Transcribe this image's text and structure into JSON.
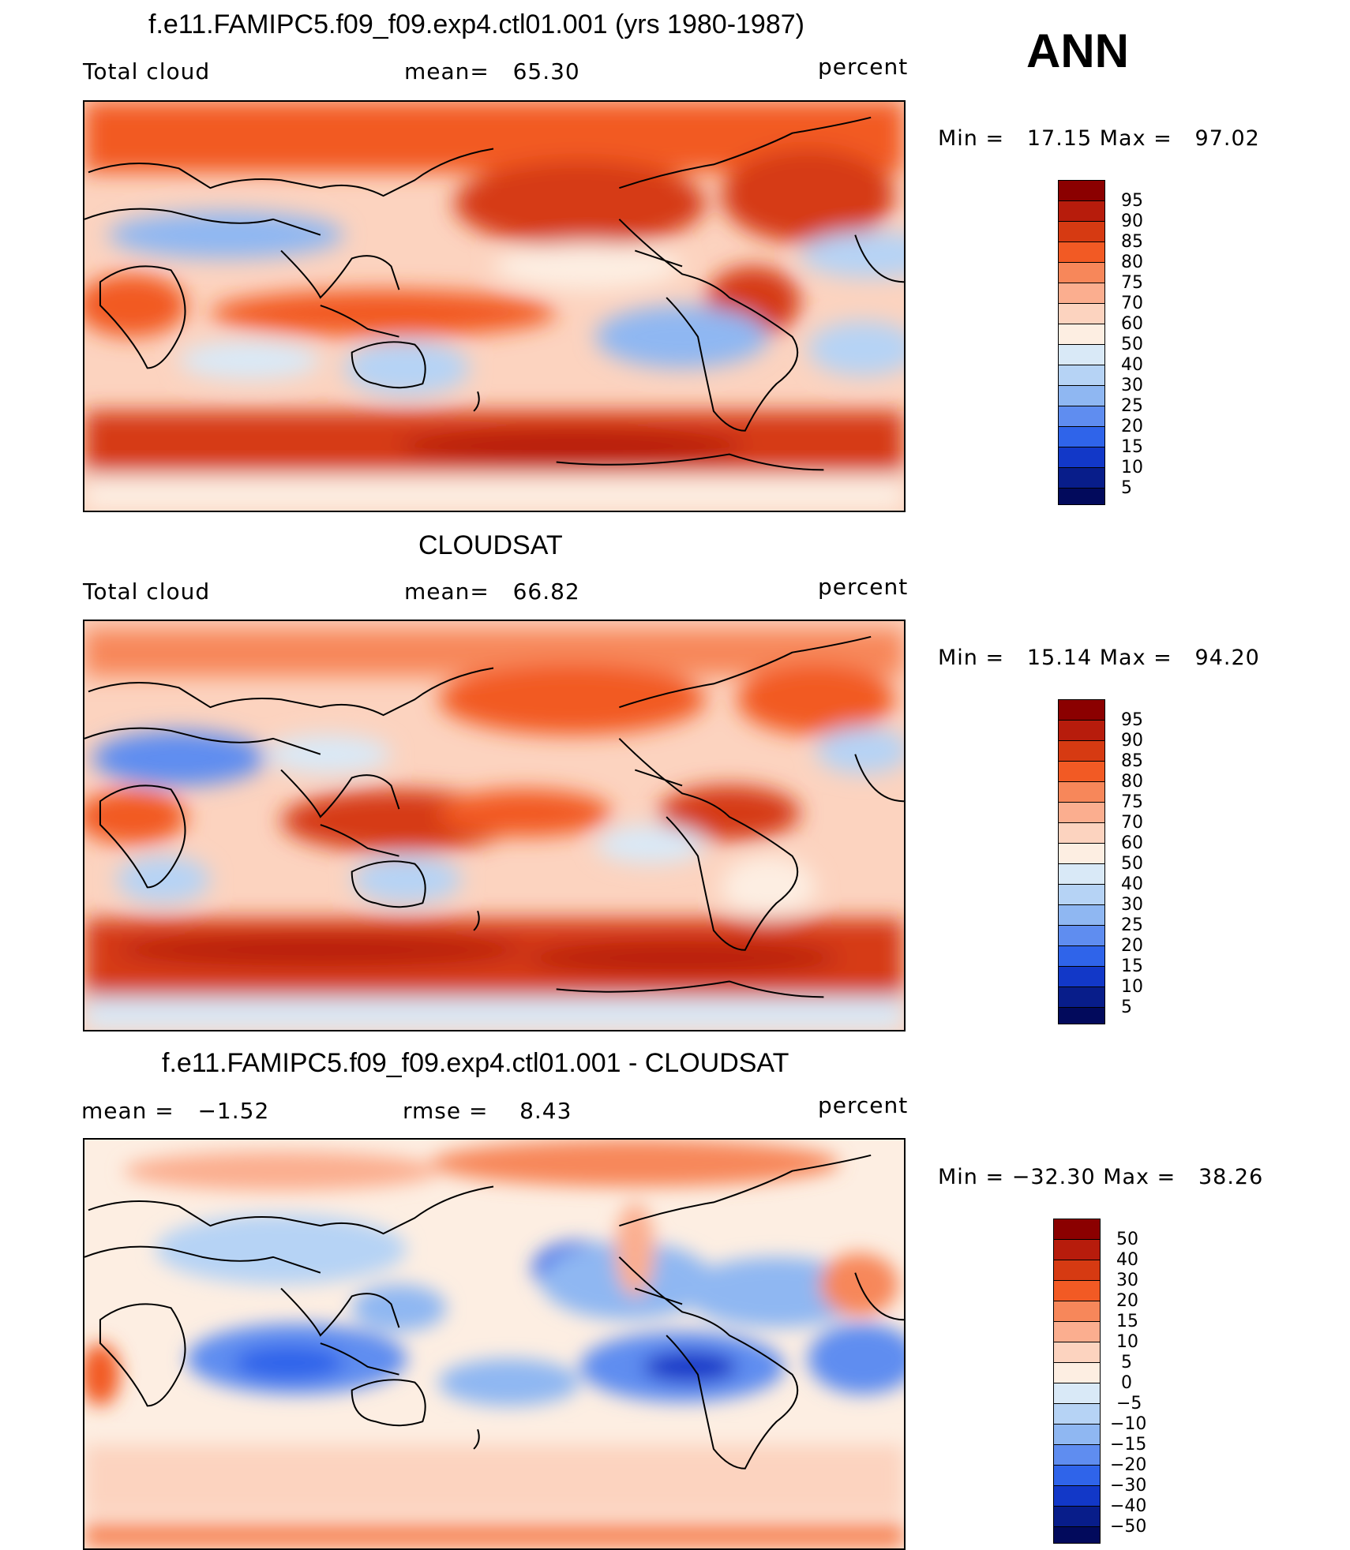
{
  "header": {
    "season": "ANN"
  },
  "panels": [
    {
      "title": "f.e11.FAMIPC5.f09_f09.exp4.ctl01.001 (yrs 1980-1987)",
      "left_label": "Total cloud",
      "center_label": "mean=   65.30",
      "units": "percent",
      "minmax": "Min =   17.15 Max =   97.02"
    },
    {
      "title": "CLOUDSAT",
      "left_label": "Total cloud",
      "center_label": "mean=   66.82",
      "units": "percent",
      "minmax": "Min =   15.14 Max =   94.20"
    },
    {
      "title": "f.e11.FAMIPC5.f09_f09.exp4.ctl01.001 - CLOUDSAT",
      "left_label": "mean =   −1.52",
      "center_label": "rmse =    8.43",
      "units": "percent",
      "minmax": "Min = −32.30 Max =   38.26"
    }
  ],
  "colorbars": {
    "field": {
      "labels": [
        "95",
        "90",
        "85",
        "80",
        "75",
        "70",
        "60",
        "50",
        "40",
        "30",
        "25",
        "20",
        "15",
        "10",
        "5"
      ],
      "colors": [
        "#8b0000",
        "#b71c0c",
        "#d63a12",
        "#f25a24",
        "#f7875a",
        "#fbae8f",
        "#fcd3bf",
        "#fdeee2",
        "#d9e9f7",
        "#b6d3f5",
        "#8fb7f2",
        "#5f8df0",
        "#2f64ea",
        "#1238c8",
        "#081d8a",
        "#020a5c"
      ]
    },
    "diff": {
      "labels": [
        "50",
        "40",
        "30",
        "20",
        "15",
        "10",
        "5",
        "0",
        "−5",
        "−10",
        "−15",
        "−20",
        "−30",
        "−40",
        "−50"
      ],
      "colors": [
        "#8b0000",
        "#b71c0c",
        "#d63a12",
        "#f25a24",
        "#f7875a",
        "#fbae8f",
        "#fcd3bf",
        "#fdeee2",
        "#d9e9f7",
        "#b6d3f5",
        "#8fb7f2",
        "#5f8df0",
        "#2f64ea",
        "#1238c8",
        "#081d8a",
        "#020a5c"
      ]
    }
  }
}
